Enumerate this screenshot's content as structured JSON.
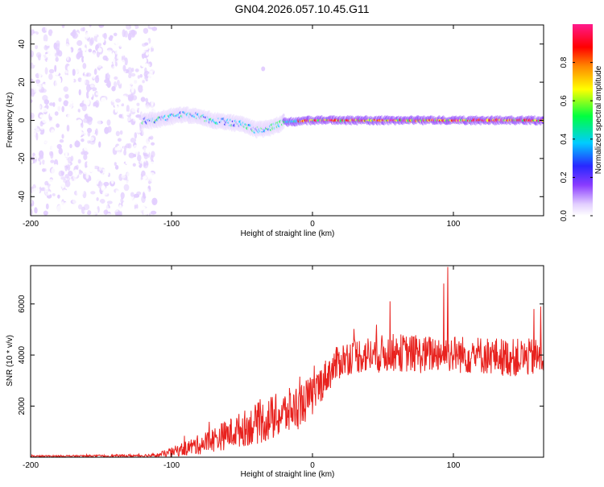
{
  "title": "GN04.2026.057.10.45.G11",
  "chart_data": [
    {
      "type": "heatmap",
      "title": "GN04.2026.057.10.45.G11",
      "xlabel": "Height of straight line (km)",
      "ylabel": "Frequency (Hz)",
      "xlim": [
        -200,
        164
      ],
      "ylim": [
        -50,
        50
      ],
      "xticks": [
        -200,
        -100,
        0,
        100
      ],
      "yticks": [
        -40,
        -20,
        0,
        20,
        40
      ],
      "colorbar": {
        "label": "Normalized spectral amplitude",
        "range": [
          0,
          1
        ],
        "ticks": [
          0.0,
          0.2,
          0.4,
          0.6,
          0.8
        ],
        "colormap": [
          "#ffffff",
          "#e3cfff",
          "#8a3cff",
          "#2828ff",
          "#00ccff",
          "#00ff40",
          "#ffff00",
          "#ff8800",
          "#ff0000",
          "#ff1a8c"
        ]
      },
      "signal_track": {
        "height_km": [
          -120,
          -110,
          -100,
          -90,
          -80,
          -70,
          -60,
          -50,
          -40,
          -30,
          -20,
          0,
          20,
          50,
          100,
          164
        ],
        "frequency_hz": [
          0,
          0,
          2,
          3,
          2,
          0,
          -1,
          -2,
          -5,
          -4,
          -1,
          0,
          0,
          0,
          0,
          0
        ]
      },
      "noise_region_km": [
        -200,
        -112
      ],
      "isolated_features": [
        {
          "height_km": -35,
          "frequency_hz": 27
        }
      ]
    },
    {
      "type": "line",
      "xlabel": "Height of straight line (km)",
      "ylabel": "SNR (10 * v/v)",
      "xlim": [
        -200,
        164
      ],
      "ylim": [
        0,
        7500
      ],
      "xticks": [
        -200,
        -100,
        0,
        100
      ],
      "yticks": [
        2000,
        4000,
        6000
      ],
      "line_color": "#e8221e",
      "x": [
        -200,
        -150,
        -120,
        -110,
        -100,
        -90,
        -80,
        -70,
        -60,
        -50,
        -40,
        -30,
        -20,
        -10,
        0,
        10,
        20,
        30,
        40,
        50,
        60,
        70,
        80,
        90,
        100,
        110,
        120,
        130,
        140,
        150,
        164
      ],
      "y": [
        40,
        50,
        60,
        80,
        200,
        350,
        500,
        700,
        900,
        1100,
        1300,
        1500,
        1700,
        2000,
        2400,
        3200,
        3800,
        4000,
        4000,
        4050,
        4100,
        4050,
        4000,
        4100,
        4050,
        4000,
        4000,
        3950,
        3900,
        3900,
        3900
      ],
      "spread": [
        30,
        40,
        60,
        80,
        180,
        300,
        400,
        500,
        600,
        700,
        800,
        900,
        900,
        900,
        800,
        700,
        700,
        700,
        750,
        750,
        750,
        750,
        750,
        750,
        750,
        750,
        750,
        750,
        750,
        750,
        750
      ],
      "spikes": [
        {
          "x": 96,
          "y": 7450
        },
        {
          "x": 93,
          "y": 6800
        },
        {
          "x": 55,
          "y": 6100
        },
        {
          "x": 162,
          "y": 5900
        },
        {
          "x": 157,
          "y": 5800
        }
      ]
    }
  ]
}
